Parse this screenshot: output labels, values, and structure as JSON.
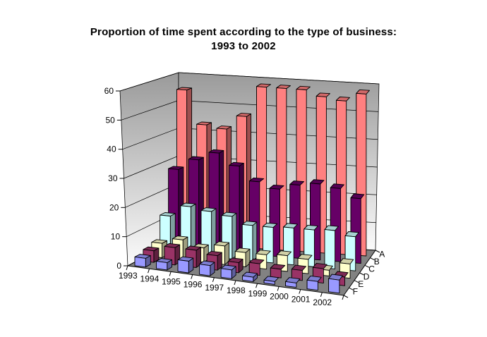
{
  "title": {
    "line1": "Proportion of time spent according to the type of business:",
    "line2": "1993 to 2002"
  },
  "chart_data": {
    "type": "bar",
    "projection": "3d",
    "title": "Proportion of time spent according to the type of business: 1993 to 2002",
    "categories": [
      "1993",
      "1994",
      "1995",
      "1996",
      "1997",
      "1998",
      "1999",
      "2000",
      "2001",
      "2002"
    ],
    "series": [
      {
        "name": "A",
        "color": "#FF8080",
        "values": [
          55,
          43,
          42,
          47,
          58,
          58,
          58,
          56,
          55,
          58
        ]
      },
      {
        "name": "B",
        "color": "#660066",
        "values": [
          28,
          32,
          35,
          31,
          26,
          24,
          26,
          27,
          26,
          23
        ]
      },
      {
        "name": "C",
        "color": "#CCFFFF",
        "values": [
          13,
          17,
          16,
          15,
          12.5,
          12.5,
          13,
          13,
          13.5,
          12
        ]
      },
      {
        "name": "D",
        "color": "#FFFFCC",
        "values": [
          5,
          7,
          5,
          6.5,
          5,
          5,
          5.5,
          5,
          2,
          5
        ]
      },
      {
        "name": "E",
        "color": "#993366",
        "values": [
          4,
          6,
          6,
          5,
          3.5,
          4,
          3,
          3.5,
          5,
          3
        ]
      },
      {
        "name": "F",
        "color": "#9999FF",
        "values": [
          3,
          2.5,
          4,
          3.5,
          3,
          1.5,
          1,
          1.5,
          3,
          4.5
        ]
      }
    ],
    "series_order_note": "series listed back row (A) to front row (F)",
    "value_axis": {
      "min": 0,
      "max": 60,
      "step": 10,
      "ticks": [
        0,
        10,
        20,
        30,
        40,
        50,
        60
      ]
    },
    "grid": true,
    "legend_position": "series-axis-right",
    "colors": {
      "floor": "#828282",
      "wall_top": "#9A9A9A",
      "wall_bottom": "#FBFBFB",
      "outline": "#000000",
      "label_text": "#000000",
      "background": "#FFFFFF"
    }
  }
}
